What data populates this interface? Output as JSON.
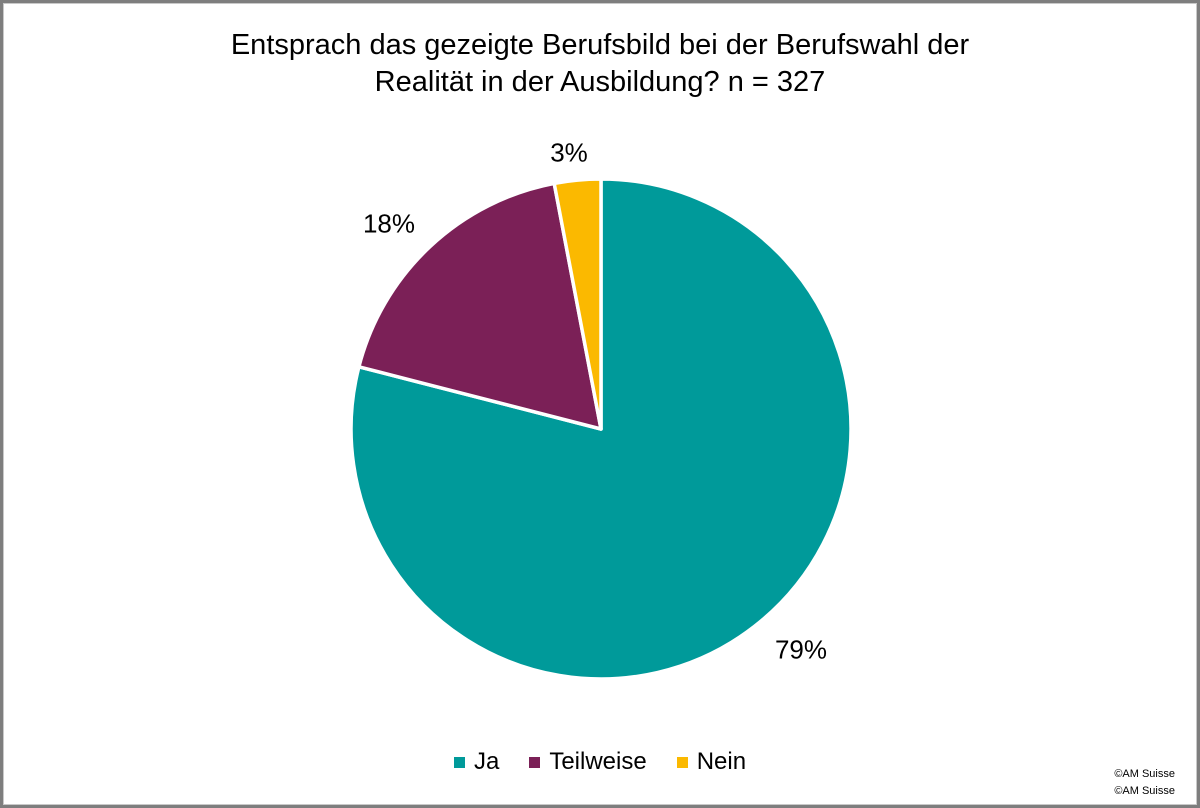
{
  "chart": {
    "title_line1": "Entsprach das gezeigte Berufsbild bei der Berufswahl der",
    "title_line2": "Realität in der Ausbildung? n = 327"
  },
  "chart_data": {
    "type": "pie",
    "title": "Entsprach das gezeigte Berufsbild bei der Berufswahl der Realität in der Ausbildung? n = 327",
    "sample_size": "n = 327",
    "categories": [
      "Ja",
      "Teilweise",
      "Nein"
    ],
    "values": [
      79,
      18,
      3
    ],
    "unit": "%",
    "data_labels": [
      "79%",
      "18%",
      "3%"
    ],
    "colors": [
      "#009a9a",
      "#7b2057",
      "#fbb900"
    ],
    "slice_border_color": "#ffffff",
    "start_angle": "top",
    "direction": "clockwise",
    "legend_position": "bottom"
  },
  "legend": {
    "items": [
      {
        "label": "Ja",
        "color": "#009a9a"
      },
      {
        "label": "Teilweise",
        "color": "#7b2057"
      },
      {
        "label": "Nein",
        "color": "#fbb900"
      }
    ]
  },
  "footer": {
    "credit_line1": "©AM Suisse",
    "credit_line2": "©AM Suisse"
  }
}
